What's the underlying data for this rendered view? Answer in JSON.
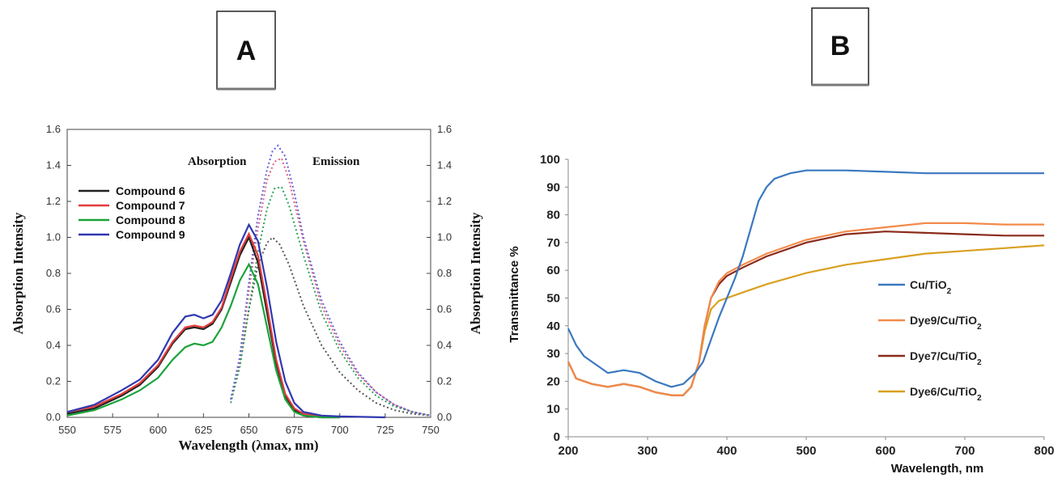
{
  "panel_a": {
    "label": "A",
    "section_labels": [
      "Absorption",
      "Emission"
    ],
    "chart_data": {
      "type": "line",
      "xlabel": "Wavelength (λmax, nm)",
      "ylabel_left": "Absorption Intensity",
      "ylabel_right": "Absorption Intensity",
      "xlim": [
        550,
        750
      ],
      "ylim": [
        0,
        1.6
      ],
      "xticks": [
        "550",
        "575",
        "600",
        "625",
        "650",
        "675",
        "700",
        "725",
        "750"
      ],
      "yticks": [
        "0.0",
        "0.2",
        "0.4",
        "0.6",
        "0.8",
        "1.0",
        "1.2",
        "1.4",
        "1.6"
      ],
      "legend_position": "top-left",
      "absorption_series": [
        {
          "name": "Compound 6",
          "color": "#222222",
          "x": [
            550,
            565,
            580,
            590,
            600,
            608,
            615,
            620,
            625,
            630,
            635,
            640,
            645,
            650,
            655,
            660,
            665,
            670,
            675,
            680,
            690,
            700
          ],
          "y": [
            0.02,
            0.05,
            0.12,
            0.18,
            0.28,
            0.41,
            0.49,
            0.5,
            0.49,
            0.52,
            0.6,
            0.75,
            0.9,
            1.0,
            0.86,
            0.58,
            0.3,
            0.12,
            0.04,
            0.01,
            0,
            0
          ]
        },
        {
          "name": "Compound 7",
          "color": "#e53b3b",
          "x": [
            550,
            565,
            580,
            590,
            600,
            608,
            615,
            620,
            625,
            630,
            635,
            640,
            645,
            650,
            655,
            660,
            665,
            670,
            675,
            680,
            690,
            700
          ],
          "y": [
            0.03,
            0.06,
            0.13,
            0.19,
            0.29,
            0.42,
            0.5,
            0.51,
            0.5,
            0.53,
            0.61,
            0.77,
            0.92,
            1.02,
            0.9,
            0.62,
            0.32,
            0.13,
            0.05,
            0.02,
            0.005,
            0
          ]
        },
        {
          "name": "Compound 8",
          "color": "#1aa33a",
          "x": [
            550,
            565,
            580,
            590,
            600,
            608,
            615,
            620,
            625,
            630,
            635,
            640,
            645,
            650,
            655,
            660,
            665,
            670,
            675,
            680,
            690,
            700
          ],
          "y": [
            0.01,
            0.04,
            0.1,
            0.15,
            0.22,
            0.32,
            0.39,
            0.41,
            0.4,
            0.42,
            0.5,
            0.62,
            0.76,
            0.85,
            0.74,
            0.5,
            0.26,
            0.1,
            0.03,
            0.01,
            0,
            0
          ]
        },
        {
          "name": "Compound 9",
          "color": "#3038b0",
          "x": [
            550,
            565,
            580,
            590,
            600,
            608,
            615,
            620,
            625,
            630,
            635,
            640,
            645,
            650,
            655,
            660,
            665,
            670,
            675,
            680,
            690,
            700,
            725
          ],
          "y": [
            0.03,
            0.07,
            0.15,
            0.21,
            0.32,
            0.47,
            0.56,
            0.57,
            0.55,
            0.57,
            0.65,
            0.8,
            0.96,
            1.07,
            0.98,
            0.72,
            0.42,
            0.2,
            0.08,
            0.03,
            0.01,
            0.005,
            0
          ]
        }
      ],
      "emission_series": [
        {
          "name": "Compound 6",
          "color": "#555555",
          "x": [
            640,
            645,
            650,
            655,
            660,
            663,
            667,
            672,
            680,
            690,
            700,
            710,
            720,
            730,
            740,
            750
          ],
          "y": [
            0.1,
            0.3,
            0.6,
            0.85,
            0.97,
            1.0,
            0.96,
            0.85,
            0.62,
            0.4,
            0.25,
            0.15,
            0.08,
            0.04,
            0.02,
            0.01
          ]
        },
        {
          "name": "Compound 7",
          "color": "#e0607e",
          "x": [
            640,
            645,
            650,
            655,
            660,
            664,
            668,
            672,
            680,
            690,
            700,
            710,
            720,
            730,
            740,
            750
          ],
          "y": [
            0.1,
            0.32,
            0.7,
            1.05,
            1.32,
            1.42,
            1.44,
            1.32,
            0.98,
            0.62,
            0.4,
            0.24,
            0.14,
            0.07,
            0.03,
            0.01
          ]
        },
        {
          "name": "Compound 8",
          "color": "#2ea35a",
          "x": [
            640,
            645,
            650,
            655,
            660,
            664,
            668,
            672,
            680,
            690,
            700,
            710,
            720,
            730,
            740,
            750
          ],
          "y": [
            0.08,
            0.28,
            0.6,
            0.92,
            1.16,
            1.27,
            1.28,
            1.18,
            0.9,
            0.58,
            0.37,
            0.22,
            0.12,
            0.06,
            0.03,
            0.01
          ]
        },
        {
          "name": "Compound 9",
          "color": "#6060e0",
          "x": [
            640,
            645,
            650,
            655,
            660,
            663,
            666,
            670,
            675,
            680,
            690,
            700,
            710,
            720,
            730,
            740,
            750
          ],
          "y": [
            0.1,
            0.34,
            0.75,
            1.12,
            1.38,
            1.48,
            1.51,
            1.45,
            1.25,
            1.0,
            0.65,
            0.42,
            0.25,
            0.14,
            0.07,
            0.03,
            0.01
          ]
        }
      ]
    }
  },
  "panel_b": {
    "label": "B",
    "chart_data": {
      "type": "line",
      "xlabel": "Wavelength, nm",
      "ylabel": "Transmittance %",
      "xlim": [
        200,
        800
      ],
      "ylim": [
        0,
        100
      ],
      "xticks": [
        "200",
        "300",
        "400",
        "500",
        "600",
        "700",
        "800"
      ],
      "yticks": [
        "0",
        "10",
        "20",
        "30",
        "40",
        "50",
        "60",
        "70",
        "80",
        "90",
        "100"
      ],
      "legend_position": "right",
      "series": [
        {
          "name": "Cu/TiO",
          "subscript": "2",
          "color": "#3a78c0",
          "x": [
            200,
            210,
            220,
            230,
            250,
            270,
            290,
            310,
            330,
            345,
            360,
            370,
            380,
            390,
            400,
            410,
            420,
            430,
            440,
            450,
            460,
            480,
            500,
            550,
            600,
            650,
            700,
            750,
            800
          ],
          "y": [
            39,
            33,
            29,
            27,
            23,
            24,
            23,
            20,
            18,
            19,
            23,
            27,
            35,
            43,
            50,
            57,
            65,
            75,
            85,
            90,
            93,
            95,
            96,
            96,
            95.5,
            95,
            95,
            95,
            95
          ]
        },
        {
          "name": "Dye9/Cu/TiO",
          "subscript": "2",
          "color": "#f28a4a",
          "x": [
            200,
            210,
            220,
            230,
            250,
            270,
            290,
            310,
            330,
            345,
            355,
            365,
            372,
            380,
            390,
            400,
            420,
            450,
            500,
            550,
            600,
            650,
            700,
            750,
            800
          ],
          "y": [
            27,
            21,
            20,
            19,
            18,
            19,
            18,
            16,
            15,
            15,
            18,
            27,
            40,
            50,
            56,
            59,
            62,
            66,
            71,
            74,
            75.5,
            77,
            77,
            76.5,
            76.5
          ]
        },
        {
          "name": "Dye7/Cu/TiO",
          "subscript": "2",
          "color": "#8b2a1a",
          "x": [
            200,
            210,
            220,
            230,
            250,
            270,
            290,
            310,
            330,
            345,
            355,
            365,
            372,
            380,
            390,
            400,
            420,
            450,
            500,
            550,
            600,
            650,
            700,
            750,
            800
          ],
          "y": [
            27,
            21,
            20,
            19,
            18,
            19,
            18,
            16,
            15,
            15,
            18,
            27,
            40,
            50,
            55,
            58,
            61,
            65,
            70,
            73,
            74,
            73.5,
            73,
            72.5,
            72.5
          ]
        },
        {
          "name": "Dye6/Cu/TiO",
          "subscript": "2",
          "color": "#d9a020",
          "x": [
            200,
            210,
            220,
            230,
            250,
            270,
            290,
            310,
            330,
            345,
            355,
            365,
            372,
            380,
            390,
            400,
            420,
            450,
            500,
            550,
            600,
            650,
            700,
            750,
            800
          ],
          "y": [
            27,
            21,
            20,
            19,
            18,
            19,
            18,
            16,
            15,
            15,
            18,
            27,
            38,
            46,
            49,
            50,
            52,
            55,
            59,
            62,
            64,
            66,
            67,
            68,
            69
          ]
        }
      ]
    }
  }
}
